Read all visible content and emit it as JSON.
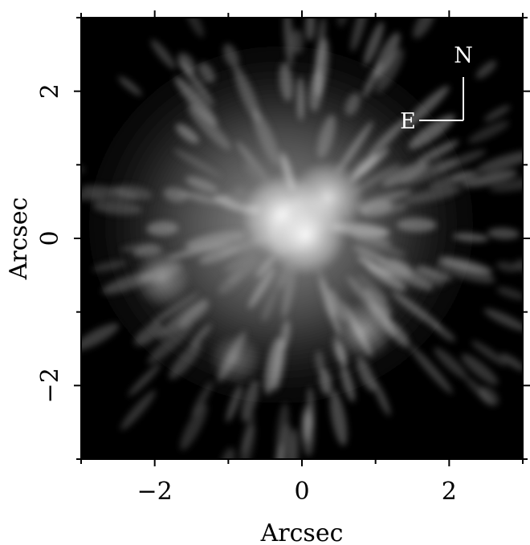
{
  "chart_data": {
    "type": "heatmap",
    "title": "",
    "xlabel": "Arcsec",
    "ylabel": "Arcsec",
    "xlim": [
      -3,
      3
    ],
    "ylim": [
      -3,
      3
    ],
    "major_ticks": [
      -2,
      0,
      2
    ],
    "minor_ticks": [
      -3,
      -1,
      1,
      3
    ],
    "colormap": "grayscale",
    "colors": {
      "background": "#000000",
      "frame": "#000000",
      "highlight": "#ffffff"
    },
    "compass": {
      "north_label": "N",
      "east_label": "E",
      "position": "top-right"
    },
    "bright_features": [
      {
        "x": -0.25,
        "y": 0.3,
        "intensity": 1.0
      },
      {
        "x": 0.05,
        "y": 0.05,
        "intensity": 0.95
      },
      {
        "x": 0.35,
        "y": 0.55,
        "intensity": 0.8
      },
      {
        "x": -1.9,
        "y": -0.55,
        "intensity": 0.45
      },
      {
        "x": 0.85,
        "y": -1.25,
        "intensity": 0.5
      },
      {
        "x": -0.9,
        "y": -1.65,
        "intensity": 0.35
      }
    ]
  }
}
